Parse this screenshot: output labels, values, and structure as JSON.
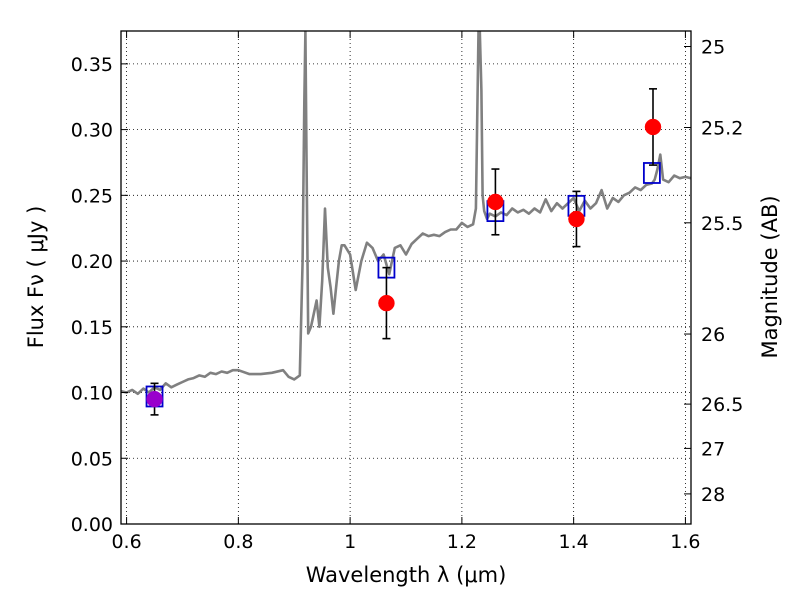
{
  "chart_data": {
    "type": "scatter",
    "xlabel": "Wavelength  λ (μm)",
    "ylabel": "Flux  Fν  ( μJy )",
    "ylabel_right": "Magnitude (AB)",
    "xlim": [
      0.59,
      1.61
    ],
    "ylim": [
      0.0,
      0.375
    ],
    "x_ticks": [
      0.6,
      0.8,
      1.0,
      1.2,
      1.4,
      1.6
    ],
    "x_tick_labels": [
      "0.6",
      "0.8",
      "1",
      "1.2",
      "1.4",
      "1.6"
    ],
    "y_ticks": [
      0.0,
      0.05,
      0.1,
      0.15,
      0.2,
      0.25,
      0.3,
      0.35
    ],
    "y_tick_labels": [
      "0.00",
      "0.05",
      "0.10",
      "0.15",
      "0.20",
      "0.25",
      "0.30",
      "0.35"
    ],
    "right_axis_ticks": [
      {
        "flux": 0.3632,
        "label": "25"
      },
      {
        "flux": 0.3016,
        "label": "25.2"
      },
      {
        "flux": 0.2291,
        "label": "25.5"
      },
      {
        "flux": 0.1445,
        "label": "26"
      },
      {
        "flux": 0.0912,
        "label": "26.5"
      },
      {
        "flux": 0.0575,
        "label": "27"
      },
      {
        "flux": 0.0229,
        "label": "28"
      }
    ],
    "grid": true,
    "colors": {
      "model": "#808080",
      "observed": "#ff0000",
      "model_photometry": "#0000cc",
      "error_bar": "#000000",
      "blended_point": "#9900cc"
    },
    "series": [
      {
        "kind": "line",
        "x": [
          0.59,
          0.6,
          0.61,
          0.62,
          0.63,
          0.64,
          0.65,
          0.66,
          0.67,
          0.68,
          0.69,
          0.7,
          0.71,
          0.72,
          0.73,
          0.74,
          0.75,
          0.76,
          0.77,
          0.78,
          0.79,
          0.8,
          0.82,
          0.84,
          0.86,
          0.88,
          0.89,
          0.9,
          0.91,
          0.915,
          0.918,
          0.92,
          0.922,
          0.925,
          0.93,
          0.935,
          0.94,
          0.945,
          0.95,
          0.955,
          0.96,
          0.965,
          0.97,
          0.975,
          0.98,
          0.985,
          0.99,
          1.0,
          1.01,
          1.02,
          1.03,
          1.04,
          1.05,
          1.06,
          1.07,
          1.08,
          1.09,
          1.1,
          1.11,
          1.12,
          1.13,
          1.14,
          1.15,
          1.16,
          1.17,
          1.18,
          1.19,
          1.2,
          1.21,
          1.22,
          1.225,
          1.23,
          1.232,
          1.235,
          1.237,
          1.24,
          1.245,
          1.25,
          1.26,
          1.27,
          1.28,
          1.29,
          1.3,
          1.31,
          1.32,
          1.33,
          1.34,
          1.35,
          1.36,
          1.37,
          1.38,
          1.39,
          1.4,
          1.41,
          1.42,
          1.43,
          1.44,
          1.45,
          1.46,
          1.47,
          1.48,
          1.49,
          1.5,
          1.51,
          1.52,
          1.53,
          1.54,
          1.545,
          1.55,
          1.555,
          1.56,
          1.57,
          1.58,
          1.59,
          1.6,
          1.61
        ],
        "y": [
          0.101,
          0.1,
          0.102,
          0.099,
          0.103,
          0.1,
          0.104,
          0.102,
          0.107,
          0.104,
          0.106,
          0.108,
          0.11,
          0.111,
          0.113,
          0.112,
          0.115,
          0.114,
          0.116,
          0.115,
          0.117,
          0.117,
          0.114,
          0.114,
          0.115,
          0.117,
          0.112,
          0.11,
          0.113,
          0.2,
          0.32,
          0.375,
          0.28,
          0.145,
          0.15,
          0.16,
          0.17,
          0.15,
          0.185,
          0.24,
          0.195,
          0.18,
          0.16,
          0.18,
          0.2,
          0.212,
          0.212,
          0.205,
          0.178,
          0.2,
          0.214,
          0.21,
          0.2,
          0.205,
          0.19,
          0.21,
          0.212,
          0.205,
          0.213,
          0.217,
          0.221,
          0.219,
          0.22,
          0.219,
          0.222,
          0.224,
          0.224,
          0.229,
          0.226,
          0.228,
          0.24,
          0.38,
          0.375,
          0.33,
          0.25,
          0.238,
          0.232,
          0.236,
          0.234,
          0.237,
          0.235,
          0.24,
          0.237,
          0.239,
          0.236,
          0.24,
          0.237,
          0.247,
          0.238,
          0.244,
          0.24,
          0.244,
          0.248,
          0.238,
          0.246,
          0.24,
          0.244,
          0.254,
          0.24,
          0.248,
          0.245,
          0.25,
          0.252,
          0.256,
          0.254,
          0.258,
          0.259,
          0.262,
          0.27,
          0.281,
          0.262,
          0.26,
          0.265,
          0.263,
          0.264,
          0.263
        ]
      },
      {
        "kind": "model_photometry",
        "x": [
          0.65,
          1.065,
          1.26,
          1.405,
          1.54
        ],
        "y": [
          0.097,
          0.195,
          0.238,
          0.242,
          0.267
        ]
      },
      {
        "kind": "observed",
        "x": [
          0.65,
          1.065,
          1.26,
          1.405,
          1.542
        ],
        "y": [
          0.095,
          0.168,
          0.245,
          0.232,
          0.302
        ],
        "yerr": [
          0.012,
          0.027,
          0.025,
          0.021,
          0.029
        ]
      }
    ]
  }
}
